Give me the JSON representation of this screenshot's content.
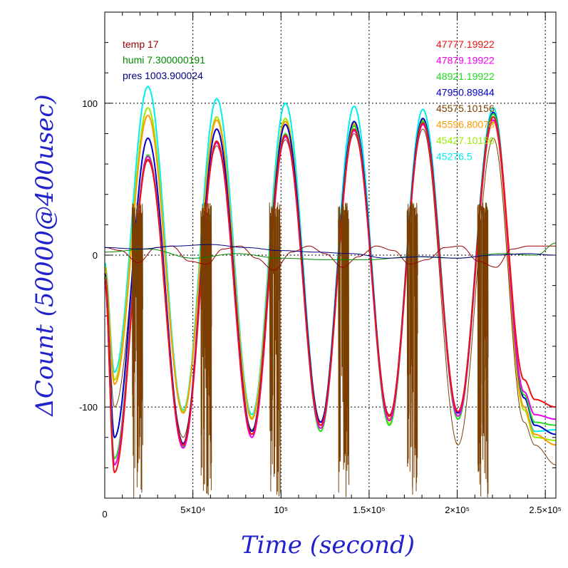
{
  "chart_data": {
    "type": "line",
    "title": "",
    "xlabel": "Time (second)",
    "ylabel": "ΔCount (50000@400usec)",
    "xlim": [
      0,
      256000
    ],
    "ylim": [
      -160,
      160
    ],
    "grid": true,
    "x_ticks": [
      {
        "value": 0,
        "label": "0"
      },
      {
        "value": 50000,
        "label": "5×10⁴"
      },
      {
        "value": 100000,
        "label": "10⁵"
      },
      {
        "value": 150000,
        "label": "1.5×10⁵"
      },
      {
        "value": 200000,
        "label": "2×10⁵"
      },
      {
        "value": 250000,
        "label": "2.5×10⁵"
      }
    ],
    "y_ticks": [
      {
        "value": 100,
        "label": "100"
      },
      {
        "value": 0,
        "label": "0"
      },
      {
        "value": -100,
        "label": "-100"
      }
    ],
    "env_legend": [
      {
        "name": "temp 17",
        "color": "#990000"
      },
      {
        "name": "humi 7.300000191",
        "color": "#008800"
      },
      {
        "name": "pres 1003.900024",
        "color": "#000080"
      }
    ],
    "series": [
      {
        "name": "47777.19922",
        "color": "#ee1111",
        "extrema": [
          [
            0,
            -15
          ],
          [
            5500,
            -143
          ],
          [
            24500,
            63
          ],
          [
            44500,
            -125
          ],
          [
            63500,
            75
          ],
          [
            83500,
            -118
          ],
          [
            102500,
            79
          ],
          [
            122500,
            -112
          ],
          [
            141500,
            83
          ],
          [
            161500,
            -106
          ],
          [
            180500,
            87
          ],
          [
            200500,
            -103
          ],
          [
            220500,
            91
          ],
          [
            238000,
            -82
          ],
          [
            244000,
            -95
          ],
          [
            256000,
            -100
          ]
        ]
      },
      {
        "name": "47879.19922",
        "color": "#ee00ee",
        "extrema": [
          [
            0,
            -18
          ],
          [
            5500,
            -138
          ],
          [
            24500,
            65
          ],
          [
            44500,
            -127
          ],
          [
            63500,
            74
          ],
          [
            83500,
            -120
          ],
          [
            102500,
            78
          ],
          [
            122500,
            -114
          ],
          [
            141500,
            82
          ],
          [
            161500,
            -109
          ],
          [
            180500,
            86
          ],
          [
            200500,
            -106
          ],
          [
            220500,
            89
          ],
          [
            238000,
            -90
          ],
          [
            244000,
            -105
          ],
          [
            256000,
            -108
          ]
        ]
      },
      {
        "name": "48921.19922",
        "color": "#22dd22",
        "extrema": [
          [
            0,
            -14
          ],
          [
            5500,
            -134
          ],
          [
            24500,
            66
          ],
          [
            44500,
            -126
          ],
          [
            63500,
            75
          ],
          [
            83500,
            -118
          ],
          [
            102500,
            80
          ],
          [
            122500,
            -116
          ],
          [
            141500,
            85
          ],
          [
            161500,
            -112
          ],
          [
            180500,
            88
          ],
          [
            200500,
            -108
          ],
          [
            220500,
            93
          ],
          [
            238000,
            -92
          ],
          [
            244000,
            -110
          ],
          [
            256000,
            -112
          ]
        ]
      },
      {
        "name": "47950.89844",
        "color": "#0000cc",
        "extrema": [
          [
            0,
            -12
          ],
          [
            5500,
            -120
          ],
          [
            24500,
            77
          ],
          [
            44500,
            -124
          ],
          [
            63500,
            83
          ],
          [
            83500,
            -116
          ],
          [
            102500,
            86
          ],
          [
            122500,
            -110
          ],
          [
            141500,
            88
          ],
          [
            161500,
            -106
          ],
          [
            180500,
            90
          ],
          [
            200500,
            -104
          ],
          [
            220500,
            94
          ],
          [
            238000,
            -94
          ],
          [
            244000,
            -112
          ],
          [
            256000,
            -118
          ]
        ]
      },
      {
        "name": "45575.10156",
        "color": "#7a3f00",
        "extrema": [
          [
            0,
            -20
          ],
          [
            5500,
            -100
          ],
          [
            24500,
            62
          ],
          [
            44500,
            -120
          ],
          [
            63500,
            72
          ],
          [
            83500,
            -115
          ],
          [
            102500,
            76
          ],
          [
            122500,
            -110
          ],
          [
            141500,
            80
          ],
          [
            161500,
            -105
          ],
          [
            180500,
            83
          ],
          [
            200500,
            -125
          ],
          [
            220500,
            77
          ],
          [
            238000,
            -110
          ],
          [
            244000,
            -125
          ],
          [
            256000,
            -138
          ]
        ]
      },
      {
        "name": "45596.80078",
        "color": "#ff9900",
        "extrema": [
          [
            0,
            -8
          ],
          [
            5500,
            -85
          ],
          [
            24500,
            92
          ],
          [
            44500,
            -104
          ],
          [
            63500,
            89
          ],
          [
            83500,
            -108
          ],
          [
            102500,
            88
          ],
          [
            122500,
            -110
          ],
          [
            141500,
            86
          ],
          [
            161500,
            -108
          ],
          [
            180500,
            88
          ],
          [
            200500,
            -104
          ],
          [
            220500,
            89
          ],
          [
            238000,
            -100
          ],
          [
            244000,
            -118
          ],
          [
            256000,
            -125
          ]
        ]
      },
      {
        "name": "45427.10156",
        "color": "#99ee00",
        "extrema": [
          [
            0,
            -7
          ],
          [
            5500,
            -82
          ],
          [
            24500,
            97
          ],
          [
            44500,
            -103
          ],
          [
            63500,
            91
          ],
          [
            83500,
            -107
          ],
          [
            102500,
            90
          ],
          [
            122500,
            -112
          ],
          [
            141500,
            87
          ],
          [
            161500,
            -111
          ],
          [
            180500,
            89
          ],
          [
            200500,
            -106
          ],
          [
            220500,
            88
          ],
          [
            238000,
            -102
          ],
          [
            244000,
            -120
          ],
          [
            256000,
            -122
          ]
        ]
      },
      {
        "name": "45276.5",
        "color": "#00eeee",
        "extrema": [
          [
            0,
            -5
          ],
          [
            5500,
            -77
          ],
          [
            24500,
            111
          ],
          [
            44500,
            -102
          ],
          [
            63500,
            103
          ],
          [
            83500,
            -105
          ],
          [
            102500,
            100
          ],
          [
            122500,
            -110
          ],
          [
            141500,
            98
          ],
          [
            161500,
            -108
          ],
          [
            180500,
            96
          ],
          [
            200500,
            -104
          ],
          [
            220500,
            97
          ],
          [
            238000,
            -100
          ],
          [
            244000,
            -116
          ],
          [
            256000,
            -115
          ]
        ]
      }
    ],
    "env_series": [
      {
        "name": "temp 17",
        "color": "#990000",
        "points": [
          [
            0,
            5
          ],
          [
            9000,
            3
          ],
          [
            19000,
            -5
          ],
          [
            29000,
            5
          ],
          [
            38000,
            6
          ],
          [
            48000,
            -4
          ],
          [
            58000,
            -6
          ],
          [
            67000,
            4
          ],
          [
            77000,
            6
          ],
          [
            86000,
            -2
          ],
          [
            96000,
            -10
          ],
          [
            106000,
            2
          ],
          [
            116000,
            6
          ],
          [
            125000,
            1
          ],
          [
            135000,
            -8
          ],
          [
            144000,
            -1
          ],
          [
            154000,
            6
          ],
          [
            164000,
            3
          ],
          [
            173000,
            -6
          ],
          [
            183000,
            -3
          ],
          [
            193000,
            5
          ],
          [
            202000,
            6
          ],
          [
            212000,
            -4
          ],
          [
            222000,
            -8
          ],
          [
            231000,
            4
          ],
          [
            241000,
            6
          ],
          [
            256000,
            6
          ]
        ]
      },
      {
        "name": "humi 7.300000191",
        "color": "#008800",
        "points": [
          [
            0,
            2
          ],
          [
            25000,
            4
          ],
          [
            50000,
            -2
          ],
          [
            75000,
            1
          ],
          [
            100000,
            -2
          ],
          [
            125000,
            -3
          ],
          [
            150000,
            -3
          ],
          [
            175000,
            -1
          ],
          [
            200000,
            -2
          ],
          [
            225000,
            1
          ],
          [
            245000,
            0
          ],
          [
            256000,
            8
          ]
        ]
      },
      {
        "name": "pres 1003.900024",
        "color": "#000080",
        "points": [
          [
            0,
            5
          ],
          [
            20000,
            4
          ],
          [
            40000,
            6
          ],
          [
            60000,
            7
          ],
          [
            80000,
            5
          ],
          [
            100000,
            3
          ],
          [
            120000,
            2
          ],
          [
            140000,
            1
          ],
          [
            160000,
            -2
          ],
          [
            180000,
            -1
          ],
          [
            200000,
            -2
          ],
          [
            220000,
            0
          ],
          [
            240000,
            1
          ],
          [
            256000,
            0
          ]
        ]
      }
    ]
  }
}
